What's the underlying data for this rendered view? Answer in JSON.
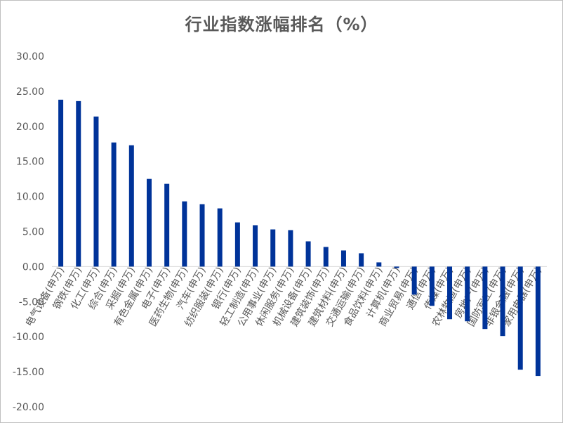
{
  "chart_data": {
    "type": "bar",
    "title": "行业指数涨幅排名（%）",
    "xlabel": "",
    "ylabel": "",
    "ylim": [
      -20,
      30
    ],
    "yticks": [
      "30.00",
      "25.00",
      "20.00",
      "15.00",
      "10.00",
      "5.00",
      "0.00",
      "-5.00",
      "-10.00",
      "-15.00",
      "-20.00"
    ],
    "grid": false,
    "legend": "none",
    "bar_color": "#003399",
    "categories": [
      "电气设备(申万)",
      "钢铁(申万)",
      "化工(申万)",
      "综合(申万)",
      "采掘(申万)",
      "有色金属(申万)",
      "电子(申万)",
      "医药生物(申万)",
      "汽车(申万)",
      "纺织服装(申万)",
      "银行(申万)",
      "轻工制造(申万)",
      "公用事业(申万)",
      "休闲服务(申万)",
      "机械设备(申万)",
      "建筑装饰(申万)",
      "建筑材料(申万)",
      "交通运输(申万)",
      "食品饮料(申万)",
      "计算机(申万)",
      "商业贸易(申万)",
      "通信(申万)",
      "传媒(申万)",
      "农林牧渔(申万)",
      "房地产(申万)",
      "国防军工(申万)",
      "非银金融(申万)",
      "家用电器(申万)"
    ],
    "values": [
      23.8,
      23.6,
      21.4,
      17.7,
      17.3,
      12.5,
      11.8,
      9.3,
      8.9,
      8.3,
      6.3,
      5.9,
      5.3,
      5.2,
      3.6,
      2.8,
      2.3,
      1.9,
      0.6,
      -0.2,
      -4.0,
      -5.6,
      -7.5,
      -7.8,
      -8.9,
      -9.9,
      -14.7,
      -15.6
    ]
  }
}
